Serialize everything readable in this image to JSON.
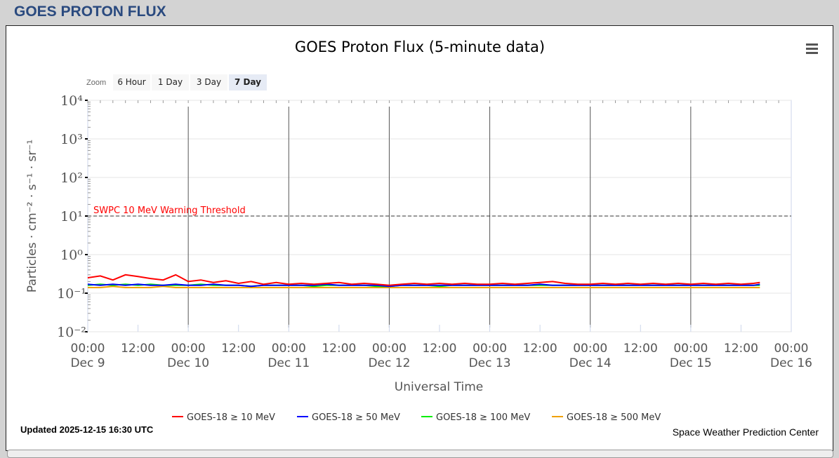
{
  "page": {
    "header": "GOES PROTON FLUX",
    "updated": "Updated 2025-12-15 16:30 UTC",
    "credit": "Space Weather Prediction Center",
    "menu_icon": "hamburger-menu-icon"
  },
  "zoom": {
    "label": "Zoom",
    "buttons": [
      "6 Hour",
      "1 Day",
      "3 Day",
      "7 Day"
    ],
    "selected": "7 Day"
  },
  "chart_data": {
    "type": "line",
    "title": "GOES Proton Flux (5-minute data)",
    "xlabel": "Universal Time",
    "ylabel": "Particles · cm⁻² · s⁻¹ · sr⁻¹",
    "yscale": "log",
    "ylim": [
      0.01,
      10000
    ],
    "xlim": [
      "2025-12-09T00:00",
      "2025-12-16T00:00"
    ],
    "ytick_labels": [
      "10⁴",
      "10³",
      "10²",
      "10¹",
      "10⁰",
      "10⁻¹",
      "10⁻²"
    ],
    "ytick_values": [
      10000,
      1000,
      100,
      10,
      1,
      0.1,
      0.01
    ],
    "xtick_labels": [
      [
        "00:00",
        "Dec 9"
      ],
      [
        "12:00",
        ""
      ],
      [
        "00:00",
        "Dec 10"
      ],
      [
        "12:00",
        ""
      ],
      [
        "00:00",
        "Dec 11"
      ],
      [
        "12:00",
        ""
      ],
      [
        "00:00",
        "Dec 12"
      ],
      [
        "12:00",
        ""
      ],
      [
        "00:00",
        "Dec 13"
      ],
      [
        "12:00",
        ""
      ],
      [
        "00:00",
        "Dec 14"
      ],
      [
        "12:00",
        ""
      ],
      [
        "00:00",
        "Dec 15"
      ],
      [
        "12:00",
        ""
      ],
      [
        "00:00",
        "Dec 16"
      ]
    ],
    "grid": true,
    "threshold": {
      "label": "SWPC 10 MeV Warning Threshold",
      "value": 10,
      "color": "#ff0000"
    },
    "legend_position": "bottom",
    "x": [
      "2025-12-09T00:00",
      "2025-12-09T03:00",
      "2025-12-09T06:00",
      "2025-12-09T09:00",
      "2025-12-09T12:00",
      "2025-12-09T15:00",
      "2025-12-09T18:00",
      "2025-12-09T21:00",
      "2025-12-10T00:00",
      "2025-12-10T03:00",
      "2025-12-10T06:00",
      "2025-12-10T09:00",
      "2025-12-10T12:00",
      "2025-12-10T15:00",
      "2025-12-10T18:00",
      "2025-12-10T21:00",
      "2025-12-11T00:00",
      "2025-12-11T03:00",
      "2025-12-11T06:00",
      "2025-12-11T09:00",
      "2025-12-11T12:00",
      "2025-12-11T15:00",
      "2025-12-11T18:00",
      "2025-12-11T21:00",
      "2025-12-12T00:00",
      "2025-12-12T03:00",
      "2025-12-12T06:00",
      "2025-12-12T09:00",
      "2025-12-12T12:00",
      "2025-12-12T15:00",
      "2025-12-12T18:00",
      "2025-12-12T21:00",
      "2025-12-13T00:00",
      "2025-12-13T03:00",
      "2025-12-13T06:00",
      "2025-12-13T09:00",
      "2025-12-13T12:00",
      "2025-12-13T15:00",
      "2025-12-13T18:00",
      "2025-12-13T21:00",
      "2025-12-14T00:00",
      "2025-12-14T03:00",
      "2025-12-14T06:00",
      "2025-12-14T09:00",
      "2025-12-14T12:00",
      "2025-12-14T15:00",
      "2025-12-14T18:00",
      "2025-12-14T21:00",
      "2025-12-15T00:00",
      "2025-12-15T03:00",
      "2025-12-15T06:00",
      "2025-12-15T09:00",
      "2025-12-15T12:00",
      "2025-12-15T15:00",
      "2025-12-15T16:30"
    ],
    "series": [
      {
        "name": "GOES-18 ≥ 10 MeV",
        "color": "#ff0000",
        "values": [
          0.25,
          0.28,
          0.22,
          0.3,
          0.27,
          0.24,
          0.22,
          0.3,
          0.2,
          0.22,
          0.19,
          0.21,
          0.18,
          0.2,
          0.17,
          0.19,
          0.17,
          0.18,
          0.17,
          0.18,
          0.19,
          0.17,
          0.18,
          0.17,
          0.16,
          0.17,
          0.18,
          0.17,
          0.18,
          0.17,
          0.18,
          0.17,
          0.17,
          0.18,
          0.17,
          0.18,
          0.19,
          0.2,
          0.18,
          0.17,
          0.17,
          0.18,
          0.17,
          0.18,
          0.17,
          0.18,
          0.17,
          0.18,
          0.17,
          0.18,
          0.17,
          0.18,
          0.17,
          0.18,
          0.19
        ]
      },
      {
        "name": "GOES-18 ≥ 50 MeV",
        "color": "#0000ff",
        "values": [
          0.17,
          0.16,
          0.17,
          0.16,
          0.17,
          0.16,
          0.16,
          0.17,
          0.16,
          0.16,
          0.17,
          0.16,
          0.16,
          0.15,
          0.16,
          0.16,
          0.16,
          0.16,
          0.16,
          0.17,
          0.16,
          0.16,
          0.16,
          0.16,
          0.15,
          0.16,
          0.16,
          0.16,
          0.16,
          0.16,
          0.16,
          0.16,
          0.16,
          0.16,
          0.16,
          0.16,
          0.17,
          0.16,
          0.16,
          0.16,
          0.16,
          0.16,
          0.16,
          0.16,
          0.16,
          0.16,
          0.16,
          0.16,
          0.16,
          0.16,
          0.16,
          0.16,
          0.16,
          0.16,
          0.17
        ]
      },
      {
        "name": "GOES-18 ≥ 100 MeV",
        "color": "#00ee00",
        "values": [
          0.16,
          0.17,
          0.16,
          0.17,
          0.16,
          0.17,
          0.16,
          0.16,
          0.16,
          0.17,
          0.16,
          0.16,
          0.16,
          0.15,
          0.16,
          0.16,
          0.16,
          0.16,
          0.15,
          0.16,
          0.16,
          0.16,
          0.16,
          0.15,
          0.15,
          0.16,
          0.16,
          0.16,
          0.15,
          0.16,
          0.16,
          0.16,
          0.16,
          0.16,
          0.16,
          0.16,
          0.16,
          0.16,
          0.16,
          0.16,
          0.16,
          0.16,
          0.16,
          0.16,
          0.16,
          0.16,
          0.16,
          0.16,
          0.16,
          0.16,
          0.16,
          0.16,
          0.16,
          0.16,
          0.16
        ]
      },
      {
        "name": "GOES-18 ≥ 500 MeV",
        "color": "#f0a000",
        "values": [
          0.14,
          0.14,
          0.15,
          0.14,
          0.14,
          0.14,
          0.15,
          0.14,
          0.14,
          0.14,
          0.14,
          0.14,
          0.14,
          0.14,
          0.14,
          0.14,
          0.14,
          0.14,
          0.14,
          0.14,
          0.14,
          0.14,
          0.14,
          0.14,
          0.14,
          0.14,
          0.14,
          0.14,
          0.14,
          0.14,
          0.14,
          0.14,
          0.14,
          0.14,
          0.14,
          0.14,
          0.14,
          0.14,
          0.14,
          0.14,
          0.14,
          0.14,
          0.14,
          0.14,
          0.14,
          0.14,
          0.14,
          0.14,
          0.14,
          0.14,
          0.14,
          0.14,
          0.14,
          0.14,
          0.14
        ]
      }
    ]
  }
}
